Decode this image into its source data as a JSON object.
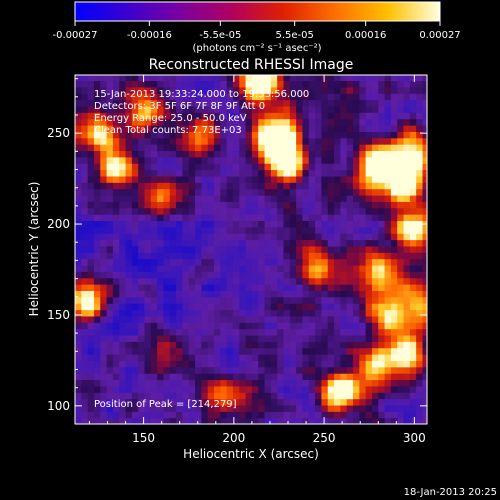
{
  "colorbar": {
    "tick_labels": [
      "-0.00027",
      "-0.00016",
      "-5.5e-05",
      "5.5e-05",
      "0.00016",
      "0.00027"
    ],
    "unit_label": "(photons cm⁻² s⁻¹ asec⁻²)",
    "range": [
      -0.00027,
      0.00027
    ],
    "colors": [
      "#0000ff",
      "#3a00d0",
      "#7a00a0",
      "#b00060",
      "#e02000",
      "#ff7000",
      "#ffc000",
      "#ffffe0"
    ]
  },
  "footer": {
    "date": "18-Jan-2013 20:25"
  },
  "chart_data": {
    "type": "heatmap",
    "title": "Reconstructed RHESSI Image",
    "xlabel": "Heliocentric X (arcsec)",
    "ylabel": "Heliocentric Y (arcsec)",
    "xlim": [
      112,
      307
    ],
    "ylim": [
      90,
      282
    ],
    "x_ticks": [
      "150",
      "200",
      "250",
      "300"
    ],
    "y_ticks": [
      "100",
      "150",
      "200",
      "250"
    ],
    "x_tick_values": [
      150,
      200,
      250,
      300
    ],
    "y_tick_values": [
      100,
      150,
      200,
      250
    ],
    "annotations": [
      "15-Jan-2013 19:33:24.000 to 19:33:56.000",
      "Detectors: 3F 5F 6F 7F 8F 9F  Att 0",
      "Energy Range: 25.0 - 50.0 keV",
      "Clean     Total counts: 7.73E+03"
    ],
    "peak_label": "Position of Peak = [214,279]",
    "peak": [
      214,
      279
    ],
    "hot_spots": [
      {
        "x": 214,
        "y": 279,
        "intensity": 1.0
      },
      {
        "x": 222,
        "y": 250,
        "intensity": 0.95
      },
      {
        "x": 229,
        "y": 236,
        "intensity": 0.9
      },
      {
        "x": 280,
        "y": 232,
        "intensity": 0.85
      },
      {
        "x": 293,
        "y": 222,
        "intensity": 0.8
      },
      {
        "x": 300,
        "y": 240,
        "intensity": 0.75
      },
      {
        "x": 125,
        "y": 250,
        "intensity": 0.75
      },
      {
        "x": 135,
        "y": 230,
        "intensity": 0.6
      },
      {
        "x": 150,
        "y": 262,
        "intensity": 0.55
      },
      {
        "x": 118,
        "y": 157,
        "intensity": 0.75
      },
      {
        "x": 258,
        "y": 108,
        "intensity": 0.8
      },
      {
        "x": 278,
        "y": 124,
        "intensity": 0.6
      },
      {
        "x": 299,
        "y": 198,
        "intensity": 0.7
      },
      {
        "x": 280,
        "y": 175,
        "intensity": 0.55
      },
      {
        "x": 285,
        "y": 150,
        "intensity": 0.55
      },
      {
        "x": 300,
        "y": 155,
        "intensity": 0.55
      },
      {
        "x": 296,
        "y": 128,
        "intensity": 0.6
      },
      {
        "x": 248,
        "y": 175,
        "intensity": 0.5
      },
      {
        "x": 160,
        "y": 215,
        "intensity": 0.5
      },
      {
        "x": 180,
        "y": 250,
        "intensity": 0.45
      },
      {
        "x": 195,
        "y": 105,
        "intensity": 0.45
      },
      {
        "x": 160,
        "y": 130,
        "intensity": 0.35
      }
    ]
  }
}
